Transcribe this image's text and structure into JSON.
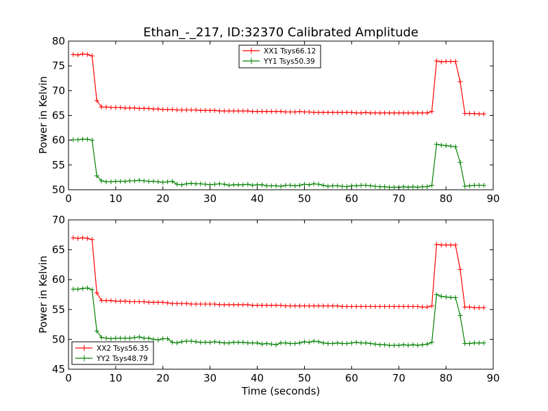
{
  "chart_data": [
    {
      "type": "line",
      "title": "Ethan_-_217, ID:32370 Calibrated Amplitude",
      "xlabel": "",
      "ylabel": "Power in Kelvin",
      "xlim": [
        0,
        90
      ],
      "ylim": [
        50,
        80
      ],
      "xticks": [
        "0",
        "10",
        "20",
        "30",
        "40",
        "50",
        "60",
        "70",
        "80",
        "90"
      ],
      "yticks": [
        "50",
        "55",
        "60",
        "65",
        "70",
        "75",
        "80"
      ],
      "grid": false,
      "legend_position": "top-center",
      "series": [
        {
          "name": "XX1 Tsys66.12",
          "color": "#ff0000",
          "x": [
            1,
            2,
            3,
            4,
            5,
            6,
            7,
            8,
            9,
            10,
            11,
            12,
            13,
            14,
            15,
            16,
            17,
            18,
            19,
            20,
            21,
            22,
            23,
            24,
            25,
            26,
            27,
            28,
            29,
            30,
            31,
            32,
            33,
            34,
            35,
            36,
            37,
            38,
            39,
            40,
            41,
            42,
            43,
            44,
            45,
            46,
            47,
            48,
            49,
            50,
            51,
            52,
            53,
            54,
            55,
            56,
            57,
            58,
            59,
            60,
            61,
            62,
            63,
            64,
            65,
            66,
            67,
            68,
            69,
            70,
            71,
            72,
            73,
            74,
            75,
            76,
            77,
            78,
            79,
            80,
            81,
            82,
            83,
            84,
            85,
            86,
            87,
            88
          ],
          "y": [
            77.3,
            77.2,
            77.4,
            77.3,
            77.0,
            68.0,
            66.7,
            66.7,
            66.6,
            66.6,
            66.6,
            66.5,
            66.5,
            66.5,
            66.4,
            66.4,
            66.4,
            66.3,
            66.3,
            66.2,
            66.2,
            66.2,
            66.1,
            66.1,
            66.1,
            66.1,
            66.1,
            66.0,
            66.0,
            66.0,
            66.0,
            65.9,
            65.9,
            65.9,
            65.9,
            65.9,
            65.9,
            65.9,
            65.8,
            65.8,
            65.8,
            65.8,
            65.8,
            65.8,
            65.8,
            65.7,
            65.7,
            65.7,
            65.8,
            65.7,
            65.7,
            65.6,
            65.6,
            65.6,
            65.6,
            65.6,
            65.6,
            65.6,
            65.6,
            65.6,
            65.5,
            65.5,
            65.6,
            65.5,
            65.5,
            65.5,
            65.5,
            65.5,
            65.5,
            65.5,
            65.5,
            65.5,
            65.5,
            65.5,
            65.5,
            65.5,
            65.8,
            76.0,
            75.8,
            75.9,
            75.9,
            75.9,
            71.8,
            65.4,
            65.4,
            65.4,
            65.3,
            65.3
          ]
        },
        {
          "name": "YY1 Tsys50.39",
          "color": "#008000",
          "x": [
            1,
            2,
            3,
            4,
            5,
            6,
            7,
            8,
            9,
            10,
            11,
            12,
            13,
            14,
            15,
            16,
            17,
            18,
            19,
            20,
            21,
            22,
            23,
            24,
            25,
            26,
            27,
            28,
            29,
            30,
            31,
            32,
            33,
            34,
            35,
            36,
            37,
            38,
            39,
            40,
            41,
            42,
            43,
            44,
            45,
            46,
            47,
            48,
            49,
            50,
            51,
            52,
            53,
            54,
            55,
            56,
            57,
            58,
            59,
            60,
            61,
            62,
            63,
            64,
            65,
            66,
            67,
            68,
            69,
            70,
            71,
            72,
            73,
            74,
            75,
            76,
            77,
            78,
            79,
            80,
            81,
            82,
            83,
            84,
            85,
            86,
            87,
            88
          ],
          "y": [
            60.1,
            60.1,
            60.2,
            60.2,
            60.0,
            52.8,
            51.8,
            51.6,
            51.6,
            51.7,
            51.7,
            51.7,
            51.8,
            51.8,
            51.9,
            51.8,
            51.7,
            51.7,
            51.6,
            51.5,
            51.6,
            51.7,
            51.1,
            51.0,
            51.2,
            51.3,
            51.2,
            51.2,
            51.1,
            51.0,
            51.1,
            51.2,
            51.1,
            50.9,
            51.0,
            51.0,
            51.0,
            51.1,
            50.9,
            51.0,
            51.0,
            50.8,
            50.8,
            50.8,
            50.7,
            50.9,
            50.9,
            50.8,
            50.9,
            51.1,
            51.0,
            51.2,
            51.1,
            50.9,
            50.7,
            50.8,
            50.8,
            50.7,
            50.6,
            50.8,
            50.8,
            50.9,
            50.9,
            50.8,
            50.7,
            50.6,
            50.6,
            50.5,
            50.5,
            50.5,
            50.6,
            50.5,
            50.6,
            50.5,
            50.6,
            50.6,
            50.9,
            59.2,
            59.0,
            58.9,
            58.8,
            58.7,
            55.5,
            50.7,
            50.8,
            50.9,
            50.9,
            50.9
          ]
        }
      ]
    },
    {
      "type": "line",
      "title": "",
      "xlabel": "Time (seconds)",
      "ylabel": "Power in Kelvin",
      "xlim": [
        0,
        90
      ],
      "ylim": [
        45,
        70
      ],
      "xticks": [
        "0",
        "10",
        "20",
        "30",
        "40",
        "50",
        "60",
        "70",
        "80",
        "90"
      ],
      "yticks": [
        "45",
        "50",
        "55",
        "60",
        "65",
        "70"
      ],
      "grid": false,
      "legend_position": "lower-left",
      "series": [
        {
          "name": "XX2 Tsys56.35",
          "color": "#ff0000",
          "x": [
            1,
            2,
            3,
            4,
            5,
            6,
            7,
            8,
            9,
            10,
            11,
            12,
            13,
            14,
            15,
            16,
            17,
            18,
            19,
            20,
            21,
            22,
            23,
            24,
            25,
            26,
            27,
            28,
            29,
            30,
            31,
            32,
            33,
            34,
            35,
            36,
            37,
            38,
            39,
            40,
            41,
            42,
            43,
            44,
            45,
            46,
            47,
            48,
            49,
            50,
            51,
            52,
            53,
            54,
            55,
            56,
            57,
            58,
            59,
            60,
            61,
            62,
            63,
            64,
            65,
            66,
            67,
            68,
            69,
            70,
            71,
            72,
            73,
            74,
            75,
            76,
            77,
            78,
            79,
            80,
            81,
            82,
            83,
            84,
            85,
            86,
            87,
            88
          ],
          "y": [
            67.0,
            66.9,
            67.0,
            66.9,
            66.7,
            57.8,
            56.5,
            56.5,
            56.5,
            56.4,
            56.4,
            56.4,
            56.3,
            56.3,
            56.3,
            56.3,
            56.2,
            56.2,
            56.2,
            56.2,
            56.1,
            56.0,
            56.0,
            56.0,
            56.0,
            55.9,
            55.9,
            55.9,
            55.9,
            55.9,
            55.9,
            55.8,
            55.8,
            55.8,
            55.8,
            55.8,
            55.8,
            55.8,
            55.7,
            55.7,
            55.7,
            55.7,
            55.7,
            55.7,
            55.7,
            55.6,
            55.6,
            55.6,
            55.6,
            55.6,
            55.6,
            55.6,
            55.6,
            55.6,
            55.6,
            55.6,
            55.6,
            55.5,
            55.5,
            55.5,
            55.5,
            55.5,
            55.5,
            55.5,
            55.5,
            55.5,
            55.5,
            55.5,
            55.5,
            55.5,
            55.5,
            55.5,
            55.5,
            55.5,
            55.4,
            55.4,
            55.6,
            65.9,
            65.8,
            65.8,
            65.8,
            65.8,
            61.7,
            55.4,
            55.4,
            55.3,
            55.3,
            55.3
          ]
        },
        {
          "name": "YY2 Tsys48.79",
          "color": "#008000",
          "x": [
            1,
            2,
            3,
            4,
            5,
            6,
            7,
            8,
            9,
            10,
            11,
            12,
            13,
            14,
            15,
            16,
            17,
            18,
            19,
            20,
            21,
            22,
            23,
            24,
            25,
            26,
            27,
            28,
            29,
            30,
            31,
            32,
            33,
            34,
            35,
            36,
            37,
            38,
            39,
            40,
            41,
            42,
            43,
            44,
            45,
            46,
            47,
            48,
            49,
            50,
            51,
            52,
            53,
            54,
            55,
            56,
            57,
            58,
            59,
            60,
            61,
            62,
            63,
            64,
            65,
            66,
            67,
            68,
            69,
            70,
            71,
            72,
            73,
            74,
            75,
            76,
            77,
            78,
            79,
            80,
            81,
            82,
            83,
            84,
            85,
            86,
            87,
            88
          ],
          "y": [
            58.4,
            58.4,
            58.5,
            58.6,
            58.3,
            51.4,
            50.3,
            50.2,
            50.1,
            50.2,
            50.2,
            50.2,
            50.2,
            50.3,
            50.4,
            50.2,
            50.2,
            50.0,
            49.9,
            50.1,
            50.1,
            49.5,
            49.4,
            49.6,
            49.7,
            49.7,
            49.6,
            49.5,
            49.5,
            49.5,
            49.6,
            49.5,
            49.4,
            49.4,
            49.5,
            49.5,
            49.5,
            49.4,
            49.4,
            49.4,
            49.2,
            49.3,
            49.2,
            49.1,
            49.4,
            49.4,
            49.3,
            49.3,
            49.4,
            49.6,
            49.5,
            49.7,
            49.6,
            49.4,
            49.3,
            49.3,
            49.4,
            49.3,
            49.3,
            49.4,
            49.5,
            49.4,
            49.4,
            49.3,
            49.2,
            49.1,
            49.1,
            49.0,
            49.0,
            49.0,
            49.1,
            49.0,
            49.1,
            49.0,
            49.1,
            49.2,
            49.5,
            57.5,
            57.2,
            57.1,
            57.0,
            57.0,
            54.0,
            49.3,
            49.3,
            49.4,
            49.4,
            49.4
          ]
        }
      ]
    }
  ]
}
